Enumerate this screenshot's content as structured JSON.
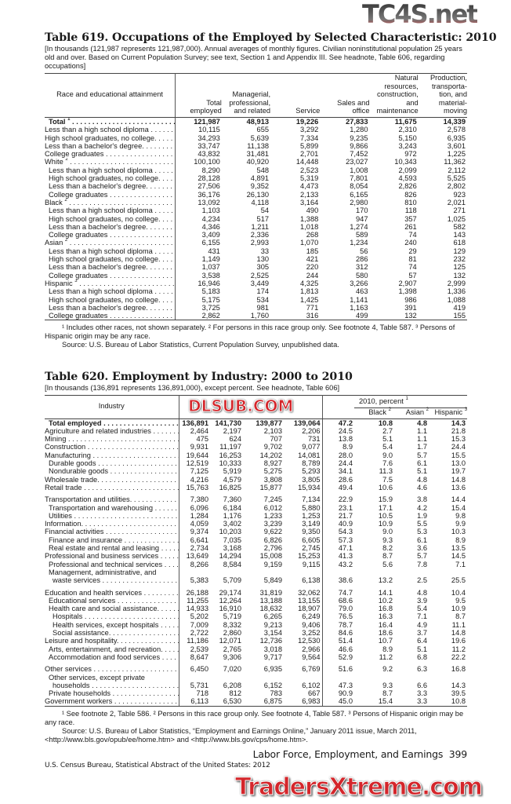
{
  "t619": {
    "title": "Table 619. Occupations of the Employed by Selected Characteristic: 2010",
    "headnote": "[In thousands (121,987 represents 121,987,000). Annual averages of monthly figures. Civilian noninstitutional population 25 years old and over. Based on Current Population Survey; see text, Section 1 and Appendix III. See headnote, Table 606, regarding occupations]",
    "stub_header": "Race and educational attainment",
    "columns": [
      "Total employed",
      "Managerial, professional, and related",
      "Service",
      "Sales and office",
      "Natural resources, construction, and maintenance",
      "Production, transporta-tion, and material-moving"
    ],
    "rows": [
      {
        "label": "Total",
        "fn": "1",
        "indent": 1,
        "bold": true,
        "values": [
          "121,987",
          "48,913",
          "19,226",
          "27,833",
          "11,675",
          "14,339"
        ]
      },
      {
        "label": "Less than a high school diploma",
        "indent": 0,
        "values": [
          "10,115",
          "655",
          "3,292",
          "1,280",
          "2,310",
          "2,578"
        ]
      },
      {
        "label": "High school graduates, no college.",
        "indent": 0,
        "values": [
          "34,293",
          "5,639",
          "7,334",
          "9,235",
          "5,150",
          "6,935"
        ]
      },
      {
        "label": "Less than a bachelor's degree.",
        "indent": 0,
        "values": [
          "33,747",
          "11,138",
          "5,899",
          "9,866",
          "3,243",
          "3,601"
        ]
      },
      {
        "label": "College graduates",
        "indent": 0,
        "values": [
          "43,832",
          "31,481",
          "2,701",
          "7,452",
          "972",
          "1,225"
        ]
      },
      {
        "label": "White",
        "fn": "2",
        "indent": 0,
        "values": [
          "100,100",
          "40,920",
          "14,448",
          "23,027",
          "10,343",
          "11,362"
        ]
      },
      {
        "label": "Less than a high school diploma",
        "indent": 1,
        "values": [
          "8,290",
          "548",
          "2,523",
          "1,008",
          "2,099",
          "2,112"
        ]
      },
      {
        "label": "High school graduates, no college.",
        "indent": 1,
        "values": [
          "28,128",
          "4,891",
          "5,319",
          "7,801",
          "4,593",
          "5,525"
        ]
      },
      {
        "label": "Less than a bachelor's degree.",
        "indent": 1,
        "values": [
          "27,506",
          "9,352",
          "4,473",
          "8,054",
          "2,826",
          "2,802"
        ]
      },
      {
        "label": "College graduates",
        "indent": 1,
        "values": [
          "36,176",
          "26,130",
          "2,133",
          "6,165",
          "826",
          "923"
        ]
      },
      {
        "label": "Black",
        "fn": "2",
        "indent": 0,
        "values": [
          "13,092",
          "4,118",
          "3,164",
          "2,980",
          "810",
          "2,021"
        ]
      },
      {
        "label": "Less than a high school diploma",
        "indent": 1,
        "values": [
          "1,103",
          "54",
          "490",
          "170",
          "118",
          "271"
        ]
      },
      {
        "label": "High school graduates, no college.",
        "indent": 1,
        "values": [
          "4,234",
          "517",
          "1,388",
          "947",
          "357",
          "1,025"
        ]
      },
      {
        "label": "Less than a bachelor's degree.",
        "indent": 1,
        "values": [
          "4,346",
          "1,211",
          "1,018",
          "1,274",
          "261",
          "582"
        ]
      },
      {
        "label": "College graduates",
        "indent": 1,
        "values": [
          "3,409",
          "2,336",
          "268",
          "589",
          "74",
          "143"
        ]
      },
      {
        "label": "Asian",
        "fn": "2",
        "indent": 0,
        "values": [
          "6,155",
          "2,993",
          "1,070",
          "1,234",
          "240",
          "618"
        ]
      },
      {
        "label": "Less than a high school diploma",
        "indent": 1,
        "values": [
          "431",
          "33",
          "185",
          "56",
          "29",
          "129"
        ]
      },
      {
        "label": "High school graduates, no college.",
        "indent": 1,
        "values": [
          "1,149",
          "130",
          "421",
          "286",
          "81",
          "232"
        ]
      },
      {
        "label": "Less than a bachelor's degree.",
        "indent": 1,
        "values": [
          "1,037",
          "305",
          "220",
          "312",
          "74",
          "125"
        ]
      },
      {
        "label": "College graduates",
        "indent": 1,
        "values": [
          "3,538",
          "2,525",
          "244",
          "580",
          "57",
          "132"
        ]
      },
      {
        "label": "Hispanic",
        "fn": "3",
        "indent": 0,
        "values": [
          "16,946",
          "3,449",
          "4,325",
          "3,266",
          "2,907",
          "2,999"
        ]
      },
      {
        "label": "Less than a high school diploma",
        "indent": 1,
        "values": [
          "5,183",
          "174",
          "1,813",
          "463",
          "1,398",
          "1,336"
        ]
      },
      {
        "label": "High school graduates, no college.",
        "indent": 1,
        "values": [
          "5,175",
          "534",
          "1,425",
          "1,141",
          "986",
          "1,088"
        ]
      },
      {
        "label": "Less than a bachelor's degree.",
        "indent": 1,
        "values": [
          "3,725",
          "981",
          "771",
          "1,163",
          "391",
          "419"
        ]
      },
      {
        "label": "College graduates",
        "indent": 1,
        "values": [
          "2,862",
          "1,760",
          "316",
          "499",
          "132",
          "155"
        ]
      }
    ],
    "footnotes": "¹ Includes other races, not shown separately. ² For persons in this race group only. See footnote 4, Table 587. ³ Persons of Hispanic origin may be any race.",
    "source": "Source: U.S. Bureau of Labor Statistics, Current Population Survey, unpublished data."
  },
  "t620": {
    "title": "Table 620. Employment by Industry: 2000 to 2010",
    "headnote": "[In thousands (136,891 represents 136,891,000), except percent. See headnote, Table 606]",
    "stub_header": "Industry",
    "group_header": "2010, percent",
    "group_fn": "1",
    "columns": [
      {
        "label": "",
        "fn": ""
      },
      {
        "label": "",
        "fn": ""
      },
      {
        "label": "",
        "fn": ""
      },
      {
        "label": "",
        "fn": ""
      },
      {
        "label": "",
        "fn": ""
      },
      {
        "label": "Black",
        "fn": "2"
      },
      {
        "label": "Asian",
        "fn": "2"
      },
      {
        "label": "Hispanic",
        "fn": "3"
      }
    ],
    "rows": [
      {
        "label": "Total employed",
        "indent": 1,
        "bold": true,
        "values": [
          "136,891",
          "141,730",
          "139,877",
          "139,064",
          "47.2",
          "10.8",
          "4.8",
          "14.3"
        ]
      },
      {
        "label": "Agriculture and related industries",
        "indent": 0,
        "values": [
          "2,464",
          "2,197",
          "2,103",
          "2,206",
          "24.5",
          "2.7",
          "1.1",
          "21.8"
        ]
      },
      {
        "label": "Mining",
        "indent": 0,
        "values": [
          "475",
          "624",
          "707",
          "731",
          "13.8",
          "5.1",
          "1.1",
          "15.3"
        ]
      },
      {
        "label": "Construction",
        "indent": 0,
        "values": [
          "9,931",
          "11,197",
          "9,702",
          "9,077",
          "8.9",
          "5.4",
          "1.7",
          "24.4"
        ]
      },
      {
        "label": "Manufacturing",
        "indent": 0,
        "values": [
          "19,644",
          "16,253",
          "14,202",
          "14,081",
          "28.0",
          "9.0",
          "5.7",
          "15.5"
        ]
      },
      {
        "label": "Durable goods",
        "indent": 1,
        "values": [
          "12,519",
          "10,333",
          "8,927",
          "8,789",
          "24.4",
          "7.6",
          "6.1",
          "13.0"
        ]
      },
      {
        "label": "Nondurable goods",
        "indent": 1,
        "values": [
          "7,125",
          "5,919",
          "5,275",
          "5,293",
          "34.1",
          "11.3",
          "5.1",
          "19.7"
        ]
      },
      {
        "label": "Wholesale trade.",
        "indent": 0,
        "values": [
          "4,216",
          "4,579",
          "3,808",
          "3,805",
          "28.6",
          "7.5",
          "4.8",
          "14.8"
        ]
      },
      {
        "label": "Retail trade",
        "indent": 0,
        "values": [
          "15,763",
          "16,825",
          "15,877",
          "15,934",
          "49.4",
          "10.6",
          "4.6",
          "13.6"
        ]
      },
      {
        "label": "Transportation and utilities.",
        "indent": 0,
        "gap": true,
        "values": [
          "7,380",
          "7,360",
          "7,245",
          "7,134",
          "22.9",
          "15.9",
          "3.8",
          "14.4"
        ]
      },
      {
        "label": "Transportation and warehousing",
        "indent": 1,
        "values": [
          "6,096",
          "6,184",
          "6,012",
          "5,880",
          "23.1",
          "17.1",
          "4.2",
          "15.4"
        ]
      },
      {
        "label": "Utilities",
        "indent": 1,
        "values": [
          "1,284",
          "1,176",
          "1,233",
          "1,253",
          "21.7",
          "10.5",
          "1.9",
          "9.8"
        ]
      },
      {
        "label": "Information.",
        "indent": 0,
        "values": [
          "4,059",
          "3,402",
          "3,239",
          "3,149",
          "40.9",
          "10.9",
          "5.5",
          "9.9"
        ]
      },
      {
        "label": "Financial activities",
        "indent": 0,
        "values": [
          "9,374",
          "10,203",
          "9,622",
          "9,350",
          "54.3",
          "9.0",
          "5.3",
          "10.3"
        ]
      },
      {
        "label": "Finance and insurance",
        "indent": 1,
        "values": [
          "6,641",
          "7,035",
          "6,826",
          "6,605",
          "57.3",
          "9.3",
          "6.1",
          "8.9"
        ]
      },
      {
        "label": "Real estate and rental and leasing",
        "indent": 1,
        "values": [
          "2,734",
          "3,168",
          "2,796",
          "2,745",
          "47.1",
          "8.2",
          "3.6",
          "13.5"
        ]
      },
      {
        "label": "Professional and business services",
        "indent": 0,
        "values": [
          "13,649",
          "14,294",
          "15,008",
          "15,253",
          "41.3",
          "8.7",
          "5.7",
          "14.5"
        ]
      },
      {
        "label": "Professional and technical services",
        "indent": 1,
        "values": [
          "8,266",
          "8,584",
          "9,159",
          "9,115",
          "43.2",
          "5.6",
          "7.8",
          "7.1"
        ]
      },
      {
        "label": "Management, administrative, and",
        "indent": 1,
        "nodots": true,
        "values": []
      },
      {
        "label": "waste services",
        "indent": 2,
        "values": [
          "5,383",
          "5,709",
          "5,849",
          "6,138",
          "38.6",
          "13.2",
          "2.5",
          "25.5"
        ]
      },
      {
        "label": "Education and health services",
        "indent": 0,
        "gap": true,
        "values": [
          "26,188",
          "29,174",
          "31,819",
          "32,062",
          "74.7",
          "14.1",
          "4.8",
          "10.4"
        ]
      },
      {
        "label": "Educational services",
        "indent": 1,
        "values": [
          "11,255",
          "12,264",
          "13,188",
          "13,155",
          "68.6",
          "10.2",
          "3.9",
          "9.5"
        ]
      },
      {
        "label": "Health care and social assistance.",
        "indent": 1,
        "values": [
          "14,933",
          "16,910",
          "18,632",
          "18,907",
          "79.0",
          "16.8",
          "5.4",
          "10.9"
        ]
      },
      {
        "label": "Hospitals",
        "indent": 2,
        "values": [
          "5,202",
          "5,719",
          "6,265",
          "6,249",
          "76.5",
          "16.3",
          "7.1",
          "8.7"
        ]
      },
      {
        "label": "Health services, except hospitals",
        "indent": 2,
        "values": [
          "7,009",
          "8,332",
          "9,213",
          "9,406",
          "78.7",
          "16.4",
          "4.9",
          "11.1"
        ]
      },
      {
        "label": "Social assistance.",
        "indent": 2,
        "values": [
          "2,722",
          "2,860",
          "3,154",
          "3,252",
          "84.6",
          "18.6",
          "3.7",
          "14.8"
        ]
      },
      {
        "label": "Leisure and hospitality.",
        "indent": 0,
        "values": [
          "11,186",
          "12,071",
          "12,736",
          "12,530",
          "51.4",
          "10.7",
          "6.4",
          "19.6"
        ]
      },
      {
        "label": "Arts, entertainment, and recreation.",
        "indent": 1,
        "values": [
          "2,539",
          "2,765",
          "3,018",
          "2,966",
          "46.6",
          "8.9",
          "5.1",
          "11.2"
        ]
      },
      {
        "label": "Accommodation and food services",
        "indent": 1,
        "values": [
          "8,647",
          "9,306",
          "9,717",
          "9,564",
          "52.9",
          "11.2",
          "6.8",
          "22.2"
        ]
      },
      {
        "label": "Other services",
        "indent": 0,
        "gap": true,
        "values": [
          "6,450",
          "7,020",
          "6,935",
          "6,769",
          "51.6",
          "9.2",
          "6.3",
          "16.8"
        ]
      },
      {
        "label": "Other services, except private",
        "indent": 1,
        "nodots": true,
        "values": []
      },
      {
        "label": "households",
        "indent": 2,
        "values": [
          "5,731",
          "6,208",
          "6,152",
          "6,102",
          "47.3",
          "9.3",
          "6.6",
          "14.3"
        ]
      },
      {
        "label": "Private households",
        "indent": 1,
        "values": [
          "718",
          "812",
          "783",
          "667",
          "90.9",
          "8.7",
          "3.3",
          "39.5"
        ]
      },
      {
        "label": "Government workers",
        "indent": 0,
        "values": [
          "6,113",
          "6,530",
          "6,875",
          "6,983",
          "45.0",
          "15.4",
          "3.3",
          "10.8"
        ]
      }
    ],
    "footnotes": "¹ See footnote 2, Table 586. ² Persons in this race group only. See footnote 4, Table 587. ³ Persons of Hispanic origin may be any race.",
    "source": "Source: U.S. Bureau of Labor Statistics, “Employment and Earnings Online,” January 2011 issue, March 2011, <http://www.bls.gov/opub/ee/home.htm> and <http://www.bls.gov/cps/home.htm>."
  },
  "footer": {
    "section": "Labor Force, Employment, and Earnings",
    "page": "399",
    "publication": "U.S. Census Bureau, Statistical Abstract of the United States: 2012"
  },
  "watermarks": {
    "top": "TC4S.net",
    "middle": "DLSUB.COM",
    "bottom": "TradersXtreme.com"
  },
  "colors": {
    "watermark_red": "#d4262b",
    "rule": "#444444"
  }
}
